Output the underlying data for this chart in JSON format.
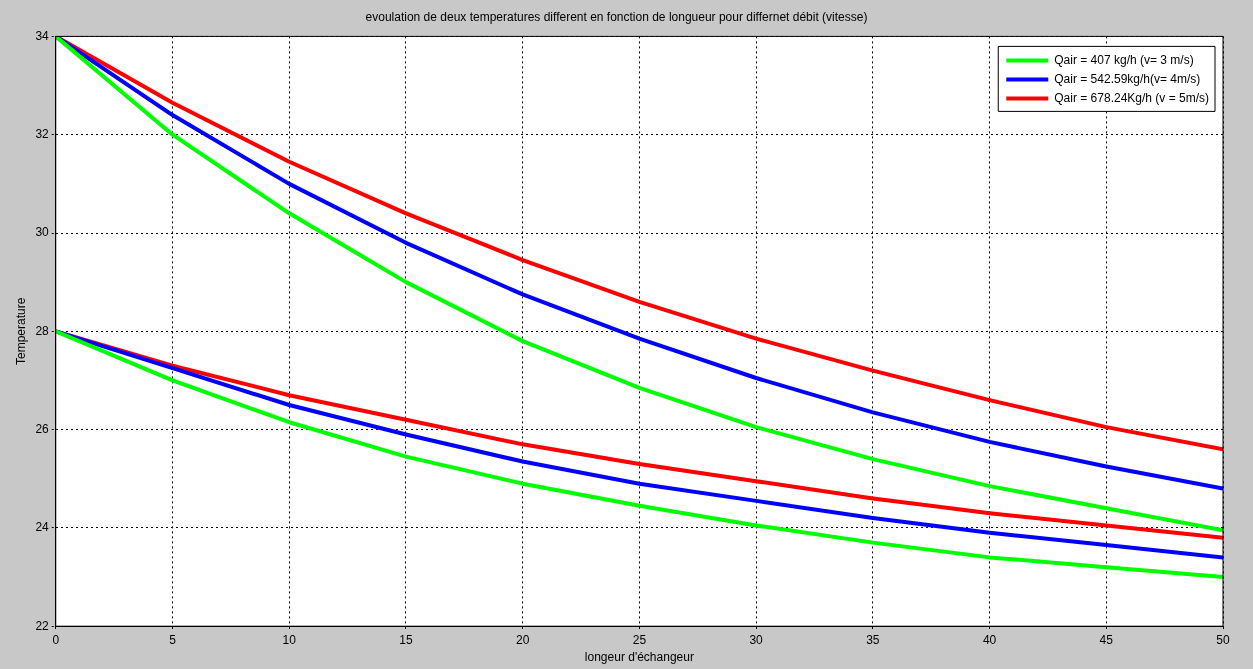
{
  "chart_data": {
    "type": "line",
    "title": "evoulation de deux temperatures different en fonction de longueur pour differnet débit (vitesse)",
    "xlabel": "longeur d'échangeur",
    "ylabel": "Temperature",
    "x": [
      0,
      5,
      10,
      15,
      20,
      25,
      30,
      35,
      40,
      45,
      50
    ],
    "xlim": [
      0,
      50
    ],
    "xticks": [
      0,
      5,
      10,
      15,
      20,
      25,
      30,
      35,
      40,
      45,
      50
    ],
    "ylim": [
      22,
      34
    ],
    "yticks": [
      22,
      24,
      26,
      28,
      30,
      32,
      34
    ],
    "grid": true,
    "legend": "top right",
    "marker": "none",
    "line_style": "solid",
    "series": [
      {
        "name": "Qair = 407 kg/h (v= 3 m/s)",
        "color": "#00ff00",
        "values": [
          34,
          32.0,
          30.4,
          29.0,
          27.8,
          26.85,
          26.05,
          25.4,
          24.85,
          24.4,
          23.95
        ]
      },
      {
        "name": "Qair = 542.59kg/h(v= 4m/s)",
        "color": "#0000ff",
        "values": [
          34,
          32.4,
          31.0,
          29.8,
          28.75,
          27.85,
          27.05,
          26.35,
          25.75,
          25.25,
          24.8
        ]
      },
      {
        "name": "Qair = 678.24Kg/h (v = 5m/s)",
        "color": "#ff0000",
        "values": [
          34,
          32.65,
          31.45,
          30.4,
          29.45,
          28.6,
          27.85,
          27.2,
          26.6,
          26.05,
          25.6
        ]
      },
      {
        "color": "#00ff00",
        "values": [
          28,
          27.0,
          26.15,
          25.45,
          24.9,
          24.45,
          24.05,
          23.7,
          23.4,
          23.2,
          23.0
        ]
      },
      {
        "color": "#0000ff",
        "values": [
          28,
          27.25,
          26.5,
          25.9,
          25.35,
          24.9,
          24.55,
          24.2,
          23.9,
          23.65,
          23.4
        ]
      },
      {
        "color": "#ff0000",
        "values": [
          28,
          27.3,
          26.7,
          26.2,
          25.7,
          25.3,
          24.95,
          24.6,
          24.3,
          24.05,
          23.8
        ]
      }
    ]
  }
}
